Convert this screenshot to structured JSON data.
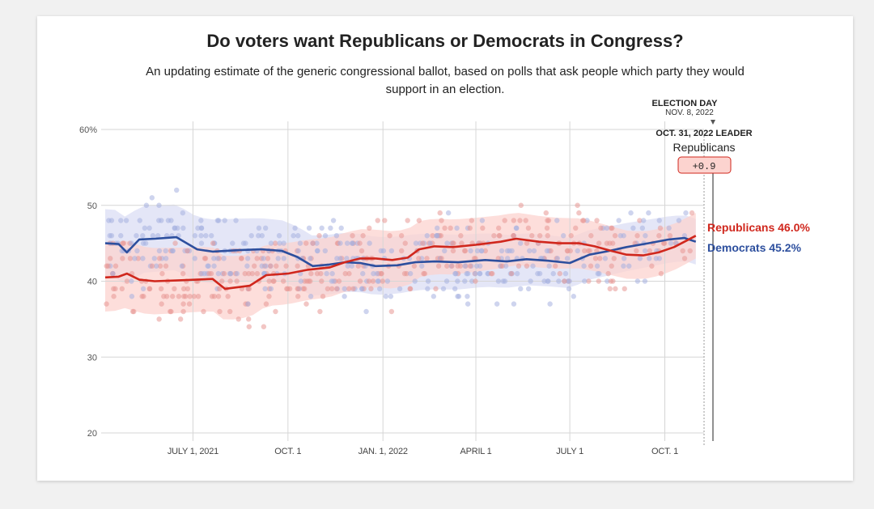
{
  "title": "Do voters want Republicans or Democrats in Congress?",
  "subtitle": "An updating estimate of the generic congressional ballot, based on polls that ask people which party they would support in an election.",
  "annotations": {
    "election_day": "ELECTION DAY",
    "election_date": "NOV. 8, 2022",
    "leader_header": "OCT. 31, 2022 LEADER",
    "leader_party": "Republicans",
    "leader_margin": "+0.9"
  },
  "colors": {
    "republican": "#d0271d",
    "democrat": "#2d4f9e",
    "republican_band": "#fcd3cf",
    "democrat_band": "#d9dcf3"
  },
  "chart_data": {
    "type": "line",
    "title": "Do voters want Republicans or Democrats in Congress?",
    "ylim": [
      20,
      60
    ],
    "yticks": [
      20,
      30,
      40,
      50,
      60
    ],
    "ytick_labels": [
      "20",
      "30",
      "40",
      "50",
      "60%"
    ],
    "xlim": [
      "2021-04-07",
      "2022-11-08"
    ],
    "xticks": [
      "2021-07-01",
      "2021-10-01",
      "2022-01-01",
      "2022-04-01",
      "2022-07-01",
      "2022-10-01"
    ],
    "xtick_labels": [
      "JULY 1, 2021",
      "OCT. 1",
      "JAN. 1, 2022",
      "APRIL 1",
      "JULY 1",
      "OCT. 1"
    ],
    "grid": true,
    "series": [
      {
        "name": "Republicans",
        "end_label": "Republicans 46.0%",
        "color": "#d0271d",
        "points": [
          [
            "2021-04-07",
            40.5
          ],
          [
            "2021-04-20",
            40.6
          ],
          [
            "2021-04-28",
            41.0
          ],
          [
            "2021-05-10",
            40.2
          ],
          [
            "2021-05-25",
            40.0
          ],
          [
            "2021-06-15",
            40.1
          ],
          [
            "2021-07-20",
            40.3
          ],
          [
            "2021-08-01",
            39.0
          ],
          [
            "2021-08-25",
            39.4
          ],
          [
            "2021-09-10",
            40.8
          ],
          [
            "2021-10-01",
            41.0
          ],
          [
            "2021-10-20",
            41.5
          ],
          [
            "2021-11-10",
            41.8
          ],
          [
            "2021-11-25",
            42.5
          ],
          [
            "2021-12-10",
            43.0
          ],
          [
            "2021-12-25",
            43.0
          ],
          [
            "2022-01-10",
            42.8
          ],
          [
            "2022-01-25",
            43.1
          ],
          [
            "2022-02-05",
            44.2
          ],
          [
            "2022-02-20",
            44.6
          ],
          [
            "2022-03-10",
            44.5
          ],
          [
            "2022-04-01",
            44.8
          ],
          [
            "2022-04-25",
            45.2
          ],
          [
            "2022-05-10",
            45.6
          ],
          [
            "2022-06-01",
            45.2
          ],
          [
            "2022-06-20",
            45.0
          ],
          [
            "2022-07-10",
            45.0
          ],
          [
            "2022-07-25",
            44.6
          ],
          [
            "2022-08-10",
            44.0
          ],
          [
            "2022-08-25",
            43.5
          ],
          [
            "2022-09-10",
            43.4
          ],
          [
            "2022-09-25",
            43.8
          ],
          [
            "2022-10-10",
            44.5
          ],
          [
            "2022-10-20",
            45.2
          ],
          [
            "2022-10-31",
            46.0
          ]
        ]
      },
      {
        "name": "Democrats",
        "end_label": "Democrats 45.2%",
        "color": "#2d4f9e",
        "points": [
          [
            "2021-04-07",
            45.0
          ],
          [
            "2021-04-20",
            44.9
          ],
          [
            "2021-04-28",
            43.8
          ],
          [
            "2021-05-10",
            45.5
          ],
          [
            "2021-05-25",
            45.6
          ],
          [
            "2021-06-15",
            45.8
          ],
          [
            "2021-07-05",
            44.2
          ],
          [
            "2021-07-20",
            43.9
          ],
          [
            "2021-08-15",
            44.1
          ],
          [
            "2021-09-05",
            44.2
          ],
          [
            "2021-09-25",
            44.0
          ],
          [
            "2021-10-10",
            43.2
          ],
          [
            "2021-10-25",
            42.0
          ],
          [
            "2021-11-10",
            42.2
          ],
          [
            "2021-11-25",
            42.5
          ],
          [
            "2021-12-10",
            42.4
          ],
          [
            "2021-12-25",
            42.0
          ],
          [
            "2022-01-15",
            42.1
          ],
          [
            "2022-02-01",
            42.5
          ],
          [
            "2022-02-20",
            42.6
          ],
          [
            "2022-03-15",
            42.5
          ],
          [
            "2022-04-10",
            42.8
          ],
          [
            "2022-05-01",
            42.6
          ],
          [
            "2022-05-20",
            42.9
          ],
          [
            "2022-06-10",
            42.7
          ],
          [
            "2022-07-01",
            42.4
          ],
          [
            "2022-07-20",
            43.5
          ],
          [
            "2022-08-05",
            43.9
          ],
          [
            "2022-08-25",
            44.5
          ],
          [
            "2022-09-15",
            45.0
          ],
          [
            "2022-10-05",
            45.5
          ],
          [
            "2022-10-20",
            45.7
          ],
          [
            "2022-10-31",
            45.2
          ]
        ]
      }
    ]
  }
}
